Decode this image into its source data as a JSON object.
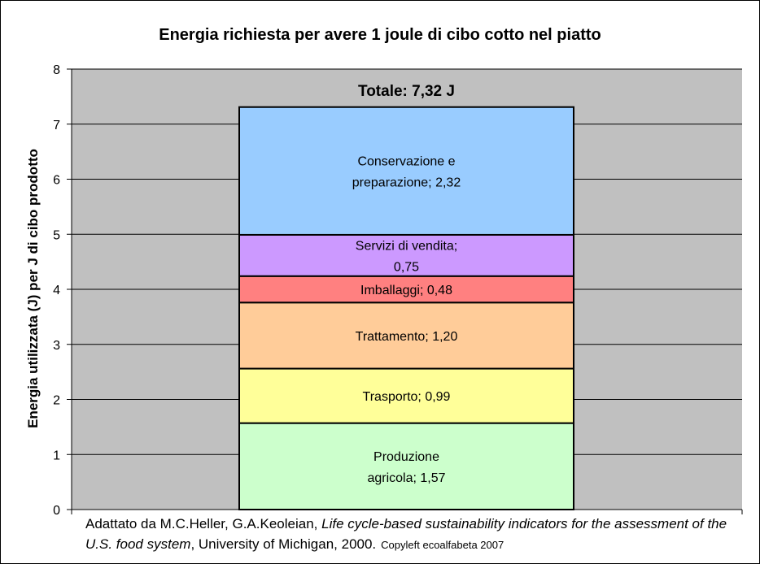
{
  "chart_data": {
    "type": "bar",
    "stacked": true,
    "title": "Energia richiesta per avere 1 joule di cibo cotto nel piatto",
    "xlabel": "",
    "ylabel": "Energia utilizzata (J) per J di cibo prodotto",
    "ylim": [
      0,
      8
    ],
    "yticks": [
      "0",
      "1",
      "2",
      "3",
      "4",
      "5",
      "6",
      "7",
      "8"
    ],
    "grid": true,
    "total_label": "Totale: 7,32 J",
    "total": 7.32,
    "series": [
      {
        "label_lines": [
          "Produzione",
          "agricola; 1,57"
        ],
        "value": 1.57,
        "color": "#ccffcc"
      },
      {
        "label_lines": [
          "Trasporto; 0,99"
        ],
        "value": 0.99,
        "color": "#ffff99"
      },
      {
        "label_lines": [
          "Trattamento; 1,20"
        ],
        "value": 1.2,
        "color": "#ffcc99"
      },
      {
        "label_lines": [
          "Imballaggi; 0,48"
        ],
        "value": 0.48,
        "color": "#ff8080"
      },
      {
        "label_lines": [
          "Servizi di vendita;",
          "0,75"
        ],
        "value": 0.75,
        "color": "#cc99ff"
      },
      {
        "label_lines": [
          "Conservazione e",
          "preparazione; 2,32"
        ],
        "value": 2.32,
        "color": "#99ccff"
      }
    ],
    "plot_background": "#c0c0c0"
  },
  "source": {
    "prefix": "Adattato da M.C.Heller, G.A.Keoleian, ",
    "italic": "Life cycle-based sustainability indicators for the assessment of the U.S. food system",
    "suffix": ", University of Michigan, 2000.",
    "copyleft": "Copyleft ecoalfabeta 2007"
  }
}
